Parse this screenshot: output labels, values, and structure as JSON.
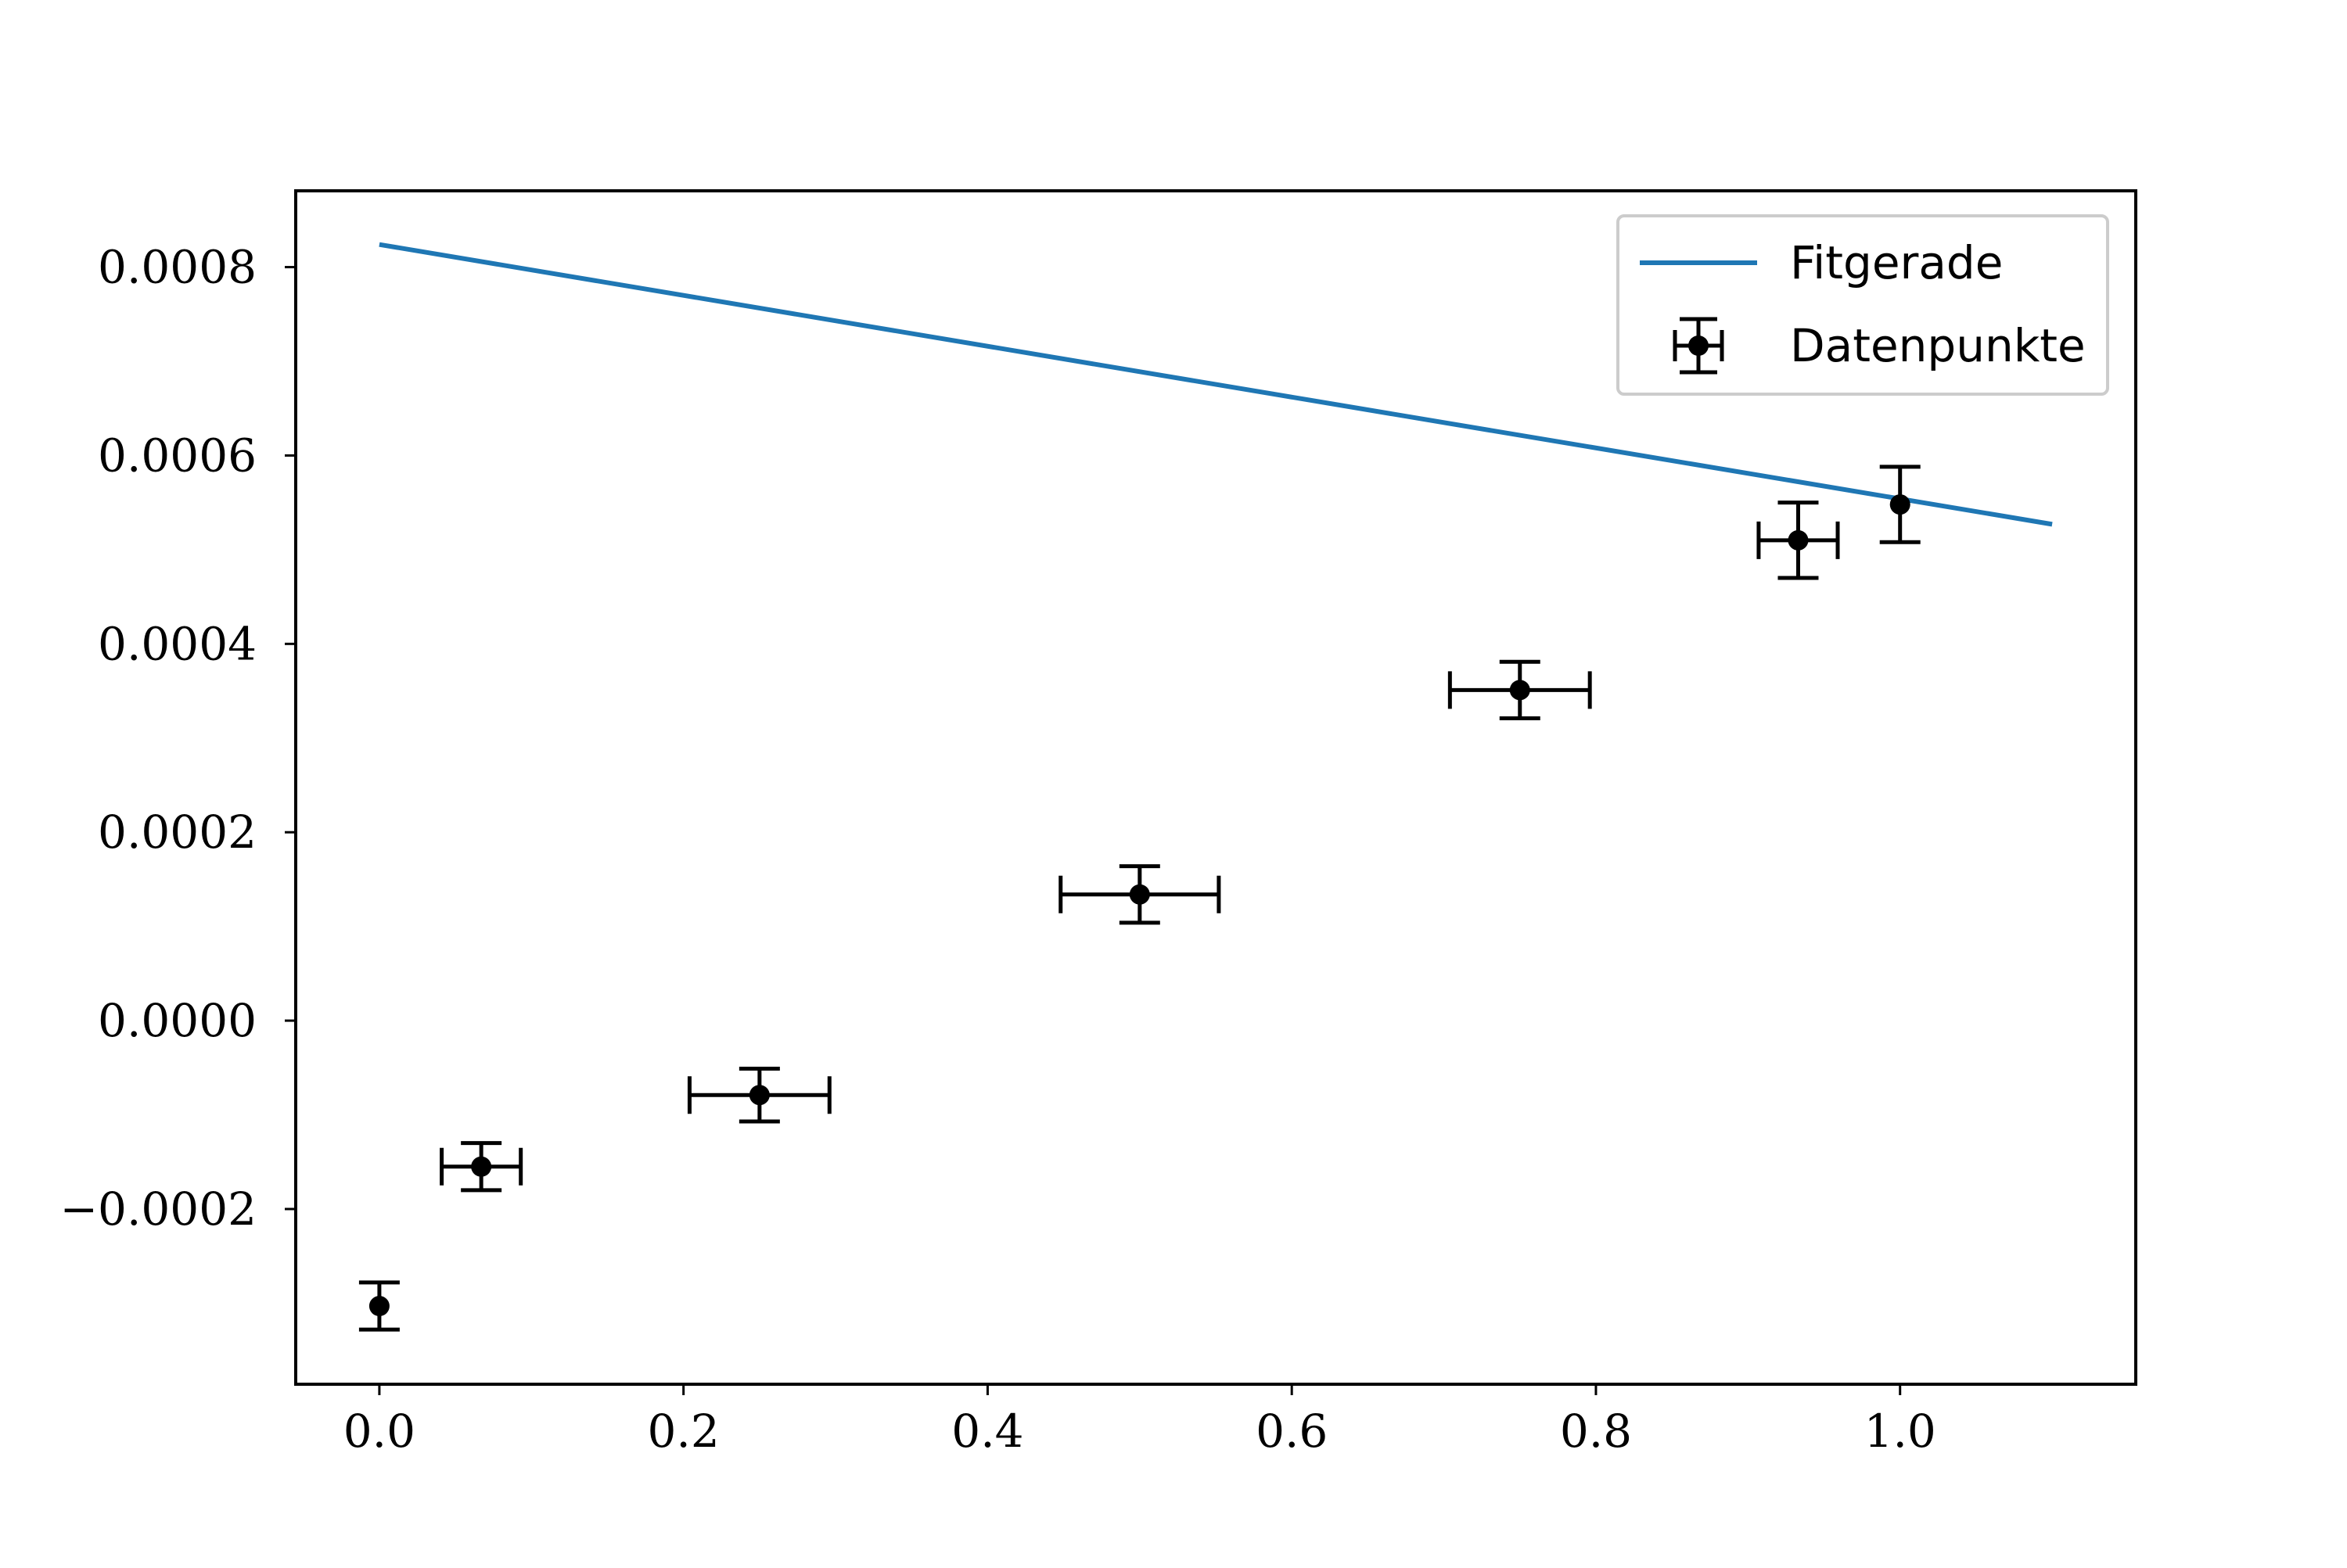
{
  "chart_data": {
    "type": "scatter",
    "title": "",
    "xlabel": "",
    "ylabel": "",
    "xlim": [
      -0.055,
      1.155
    ],
    "ylim": [
      -0.000386,
      0.000881
    ],
    "xticks": [
      0.0,
      0.2,
      0.4,
      0.6,
      0.8,
      1.0
    ],
    "xtick_labels": [
      "0.0",
      "0.2",
      "0.4",
      "0.6",
      "0.8",
      "1.0"
    ],
    "yticks": [
      -0.0002,
      0.0,
      0.0002,
      0.0004,
      0.0006,
      0.0008
    ],
    "ytick_labels": [
      "−0.0002",
      "0.0000",
      "0.0002",
      "0.0004",
      "0.0006",
      "0.0008"
    ],
    "grid": false,
    "legend_position": "top-right",
    "series": [
      {
        "name": "Fitgerade",
        "type": "line",
        "color": "#1f77b4",
        "x": [
          0.0,
          1.1
        ],
        "y": [
          0.000824,
          0.000527
        ]
      },
      {
        "name": "Datenpunkte",
        "type": "errorbar",
        "color": "#000000",
        "x": [
          0.0,
          0.067,
          0.25,
          0.5,
          0.75,
          0.933,
          1.0
        ],
        "y": [
          -0.000303,
          -0.000155,
          -7.9e-05,
          0.000134,
          0.000351,
          0.00051,
          0.000548
        ],
        "xerr": [
          0.0,
          0.026,
          0.046,
          0.052,
          0.046,
          0.026,
          0.0
        ],
        "yerr": [
          2.5e-05,
          2.5e-05,
          2.8e-05,
          3e-05,
          3e-05,
          4e-05,
          4e-05
        ]
      }
    ]
  }
}
